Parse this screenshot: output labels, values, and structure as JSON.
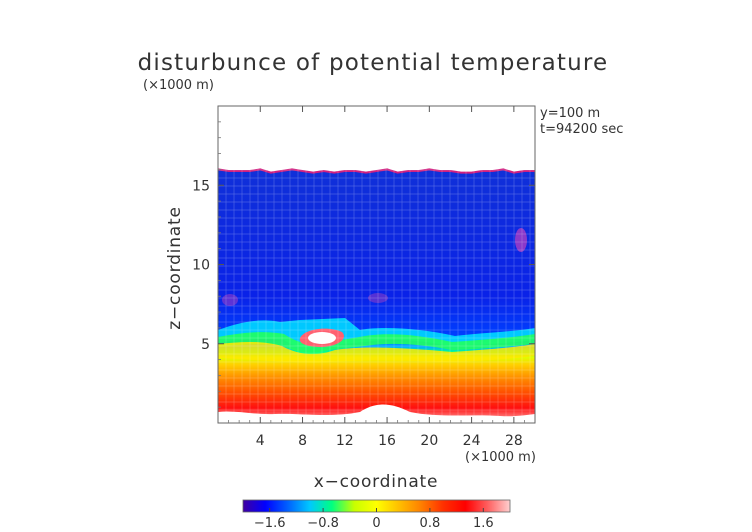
{
  "chart_data": {
    "type": "heatmap",
    "title": "disturbunce of potential temperature",
    "xlabel": "x−coordinate",
    "ylabel": "z−coordinate",
    "x_unit_label": "(×1000 m)",
    "y_unit_label": "(×1000 m)",
    "annotations": [
      "y=100 m",
      "t=94200 sec"
    ],
    "xlim": [
      0,
      30
    ],
    "ylim": [
      0,
      20
    ],
    "x_ticks": [
      4,
      8,
      12,
      16,
      20,
      24,
      28
    ],
    "y_ticks": [
      5,
      10,
      15
    ],
    "colorbar": {
      "range": [
        -2.0,
        2.0
      ],
      "ticks": [
        -1.6,
        -0.8,
        0,
        0.8,
        1.6
      ],
      "tick_labels": [
        "−1.6",
        "−0.8",
        "0",
        "0.8",
        "1.6"
      ],
      "colors": [
        "#4000a0",
        "#0000ff",
        "#0060ff",
        "#00c8ff",
        "#00ff80",
        "#c8ff00",
        "#ffff00",
        "#ffc000",
        "#ff8000",
        "#ff3000",
        "#ff0000",
        "#ff6060",
        "#ffd0d0"
      ]
    },
    "field": {
      "upper_boundary_z": [
        16.0,
        15.9,
        15.9,
        15.9,
        16.0,
        15.8,
        15.9,
        16.0,
        15.9,
        15.8,
        15.9,
        15.8,
        15.9,
        15.9,
        15.8,
        15.9,
        16.0,
        15.8,
        15.9,
        15.9,
        16.0,
        15.9,
        15.9,
        15.8,
        15.8,
        15.9,
        15.9,
        16.0,
        15.8,
        15.9,
        15.9
      ],
      "note_regions": [
        {
          "label": "blue layer",
          "value": -1.2,
          "z_range": [
            7,
            16
          ]
        },
        {
          "label": "orange/red layer",
          "value": 1.4,
          "z_range": [
            0.8,
            5.5
          ]
        },
        {
          "label": "hot spot",
          "value": 2.0,
          "x": 10,
          "z": 5.7
        }
      ]
    }
  }
}
